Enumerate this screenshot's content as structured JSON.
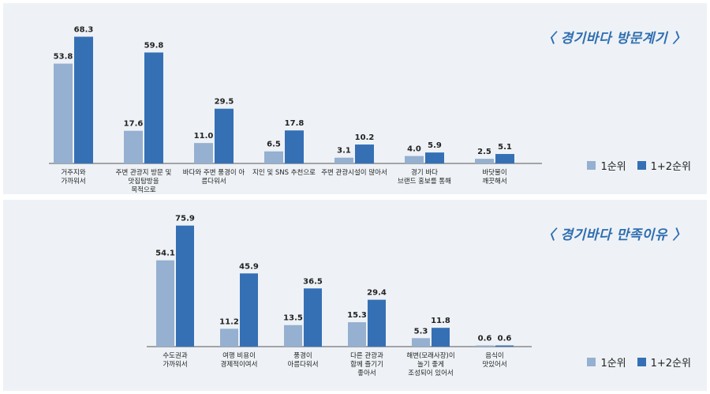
{
  "panels": [
    {
      "title": "〈 경기바다 방문계기 〉"
    },
    {
      "title": "〈 경기바다 만족이유 〉"
    }
  ],
  "legend": {
    "series1": "1순위",
    "series2": "1+2순위"
  },
  "colors": {
    "series1": "#95b0d0",
    "series2": "#3570b5",
    "panel_bg": "#eef2f6",
    "title": "#2f6eb0"
  },
  "chart_data": [
    {
      "type": "bar",
      "title": "〈 경기바다 방문계기 〉",
      "categories": [
        [
          "거주지와",
          "가까워서"
        ],
        [
          "주변 관광지 방문 및",
          "맛집탐방을",
          "목적으로"
        ],
        [
          "바다와 주변 풍경이 아",
          "름다워서"
        ],
        [
          "지인 및 SNS 추천으로"
        ],
        [
          "주변 관광시설이 많아서"
        ],
        [
          "경기 바다",
          "브랜드 홍보를 통해"
        ],
        [
          "바닷물이",
          "깨끗해서"
        ]
      ],
      "series": [
        {
          "name": "1순위",
          "values": [
            53.8,
            17.6,
            11.0,
            6.5,
            3.1,
            4.0,
            2.5
          ]
        },
        {
          "name": "1+2순위",
          "values": [
            68.3,
            59.8,
            29.5,
            17.8,
            10.2,
            5.9,
            5.1
          ]
        }
      ],
      "ylim": [
        0,
        70
      ]
    },
    {
      "type": "bar",
      "title": "〈 경기바다 만족이유 〉",
      "categories": [
        [
          "수도권과",
          "가까워서"
        ],
        [
          "여행 비용이",
          "경제적이여서"
        ],
        [
          "풍경이",
          "아름다워서"
        ],
        [
          "다른 관광과",
          "함께 즐기기",
          "좋아서"
        ],
        [
          "해변(모래사장)이",
          "놀기 좋게",
          "조성되어 있어서"
        ],
        [
          "음식이",
          "맛있어서"
        ]
      ],
      "series": [
        {
          "name": "1순위",
          "values": [
            54.1,
            11.2,
            13.5,
            15.3,
            5.3,
            0.6
          ]
        },
        {
          "name": "1+2순위",
          "values": [
            75.9,
            45.9,
            36.5,
            29.4,
            11.8,
            0.6
          ]
        }
      ],
      "ylim": [
        0,
        80
      ]
    }
  ]
}
